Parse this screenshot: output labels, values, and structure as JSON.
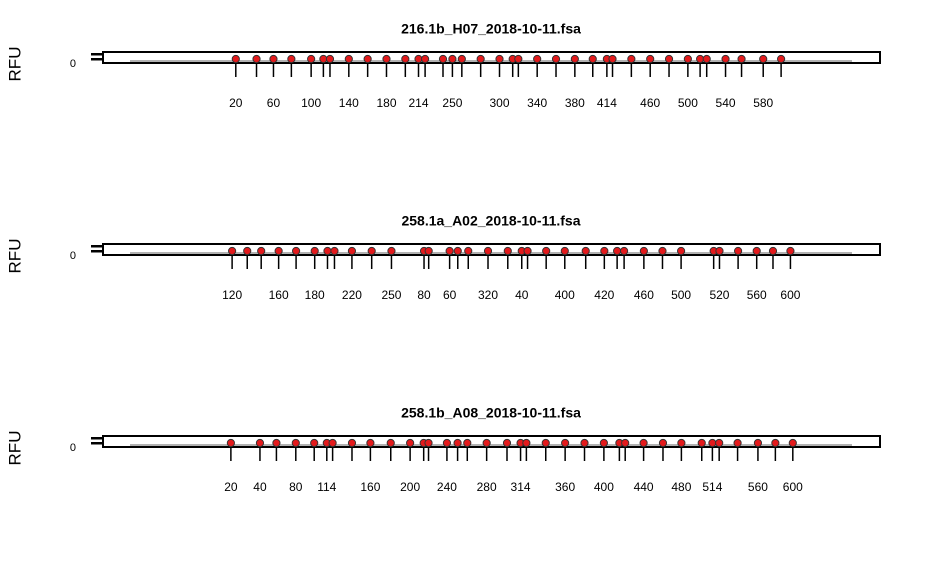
{
  "chart_data": [
    {
      "type": "scatter",
      "title": "216.1b_H07_2018-10-11.fsa",
      "ylabel": "RFU",
      "yticks": [
        0
      ],
      "xlim": [
        -121,
        704
      ],
      "color": "#e31a1c",
      "x": [
        20,
        42,
        60,
        79,
        100,
        113,
        120,
        140,
        160,
        180,
        200,
        214,
        221,
        240,
        250,
        260,
        280,
        300,
        314,
        320,
        340,
        360,
        380,
        399,
        414,
        420,
        440,
        460,
        480,
        500,
        513,
        520,
        540,
        557,
        580,
        599
      ],
      "labels": [
        20,
        null,
        60,
        null,
        100,
        null,
        null,
        140,
        null,
        180,
        null,
        214,
        null,
        null,
        250,
        null,
        null,
        300,
        null,
        null,
        340,
        null,
        380,
        null,
        414,
        null,
        null,
        460,
        null,
        500,
        null,
        null,
        540,
        null,
        580,
        null
      ]
    },
    {
      "type": "scatter",
      "title": "258.1a_A02_2018-10-11.fsa",
      "ylabel": "RFU",
      "yticks": [
        0
      ],
      "xlim": [
        9,
        677
      ],
      "color": "#e31a1c",
      "x": [
        120,
        133,
        145,
        160,
        175,
        191,
        202,
        208,
        223,
        240,
        257,
        285,
        289,
        307,
        314,
        323,
        340,
        357,
        369,
        374,
        390,
        406,
        424,
        440,
        451,
        457,
        474,
        490,
        506,
        534,
        539,
        555,
        571,
        585,
        600
      ],
      "labels": [
        120,
        null,
        null,
        160,
        null,
        180,
        null,
        null,
        220,
        null,
        250,
        80,
        null,
        60,
        null,
        null,
        320,
        null,
        40,
        null,
        null,
        400,
        null,
        420,
        null,
        null,
        460,
        null,
        500,
        null,
        520,
        null,
        560,
        null,
        600
      ]
    },
    {
      "type": "scatter",
      "title": "258.1b_A08_2018-10-11.fsa",
      "ylabel": "RFU",
      "yticks": [
        0
      ],
      "xlim": [
        -112,
        690
      ],
      "color": "#e31a1c",
      "x": [
        20,
        50,
        67,
        87,
        106,
        119,
        125,
        145,
        164,
        185,
        205,
        219,
        224,
        243,
        254,
        264,
        284,
        305,
        319,
        325,
        345,
        365,
        385,
        405,
        421,
        427,
        446,
        466,
        485,
        506,
        517,
        524,
        543,
        564,
        582,
        600
      ],
      "labels": [
        20,
        40,
        null,
        80,
        null,
        114,
        null,
        null,
        160,
        null,
        200,
        null,
        null,
        240,
        null,
        null,
        280,
        null,
        314,
        null,
        null,
        360,
        null,
        400,
        null,
        null,
        440,
        null,
        480,
        null,
        514,
        null,
        null,
        560,
        null,
        600
      ]
    }
  ]
}
